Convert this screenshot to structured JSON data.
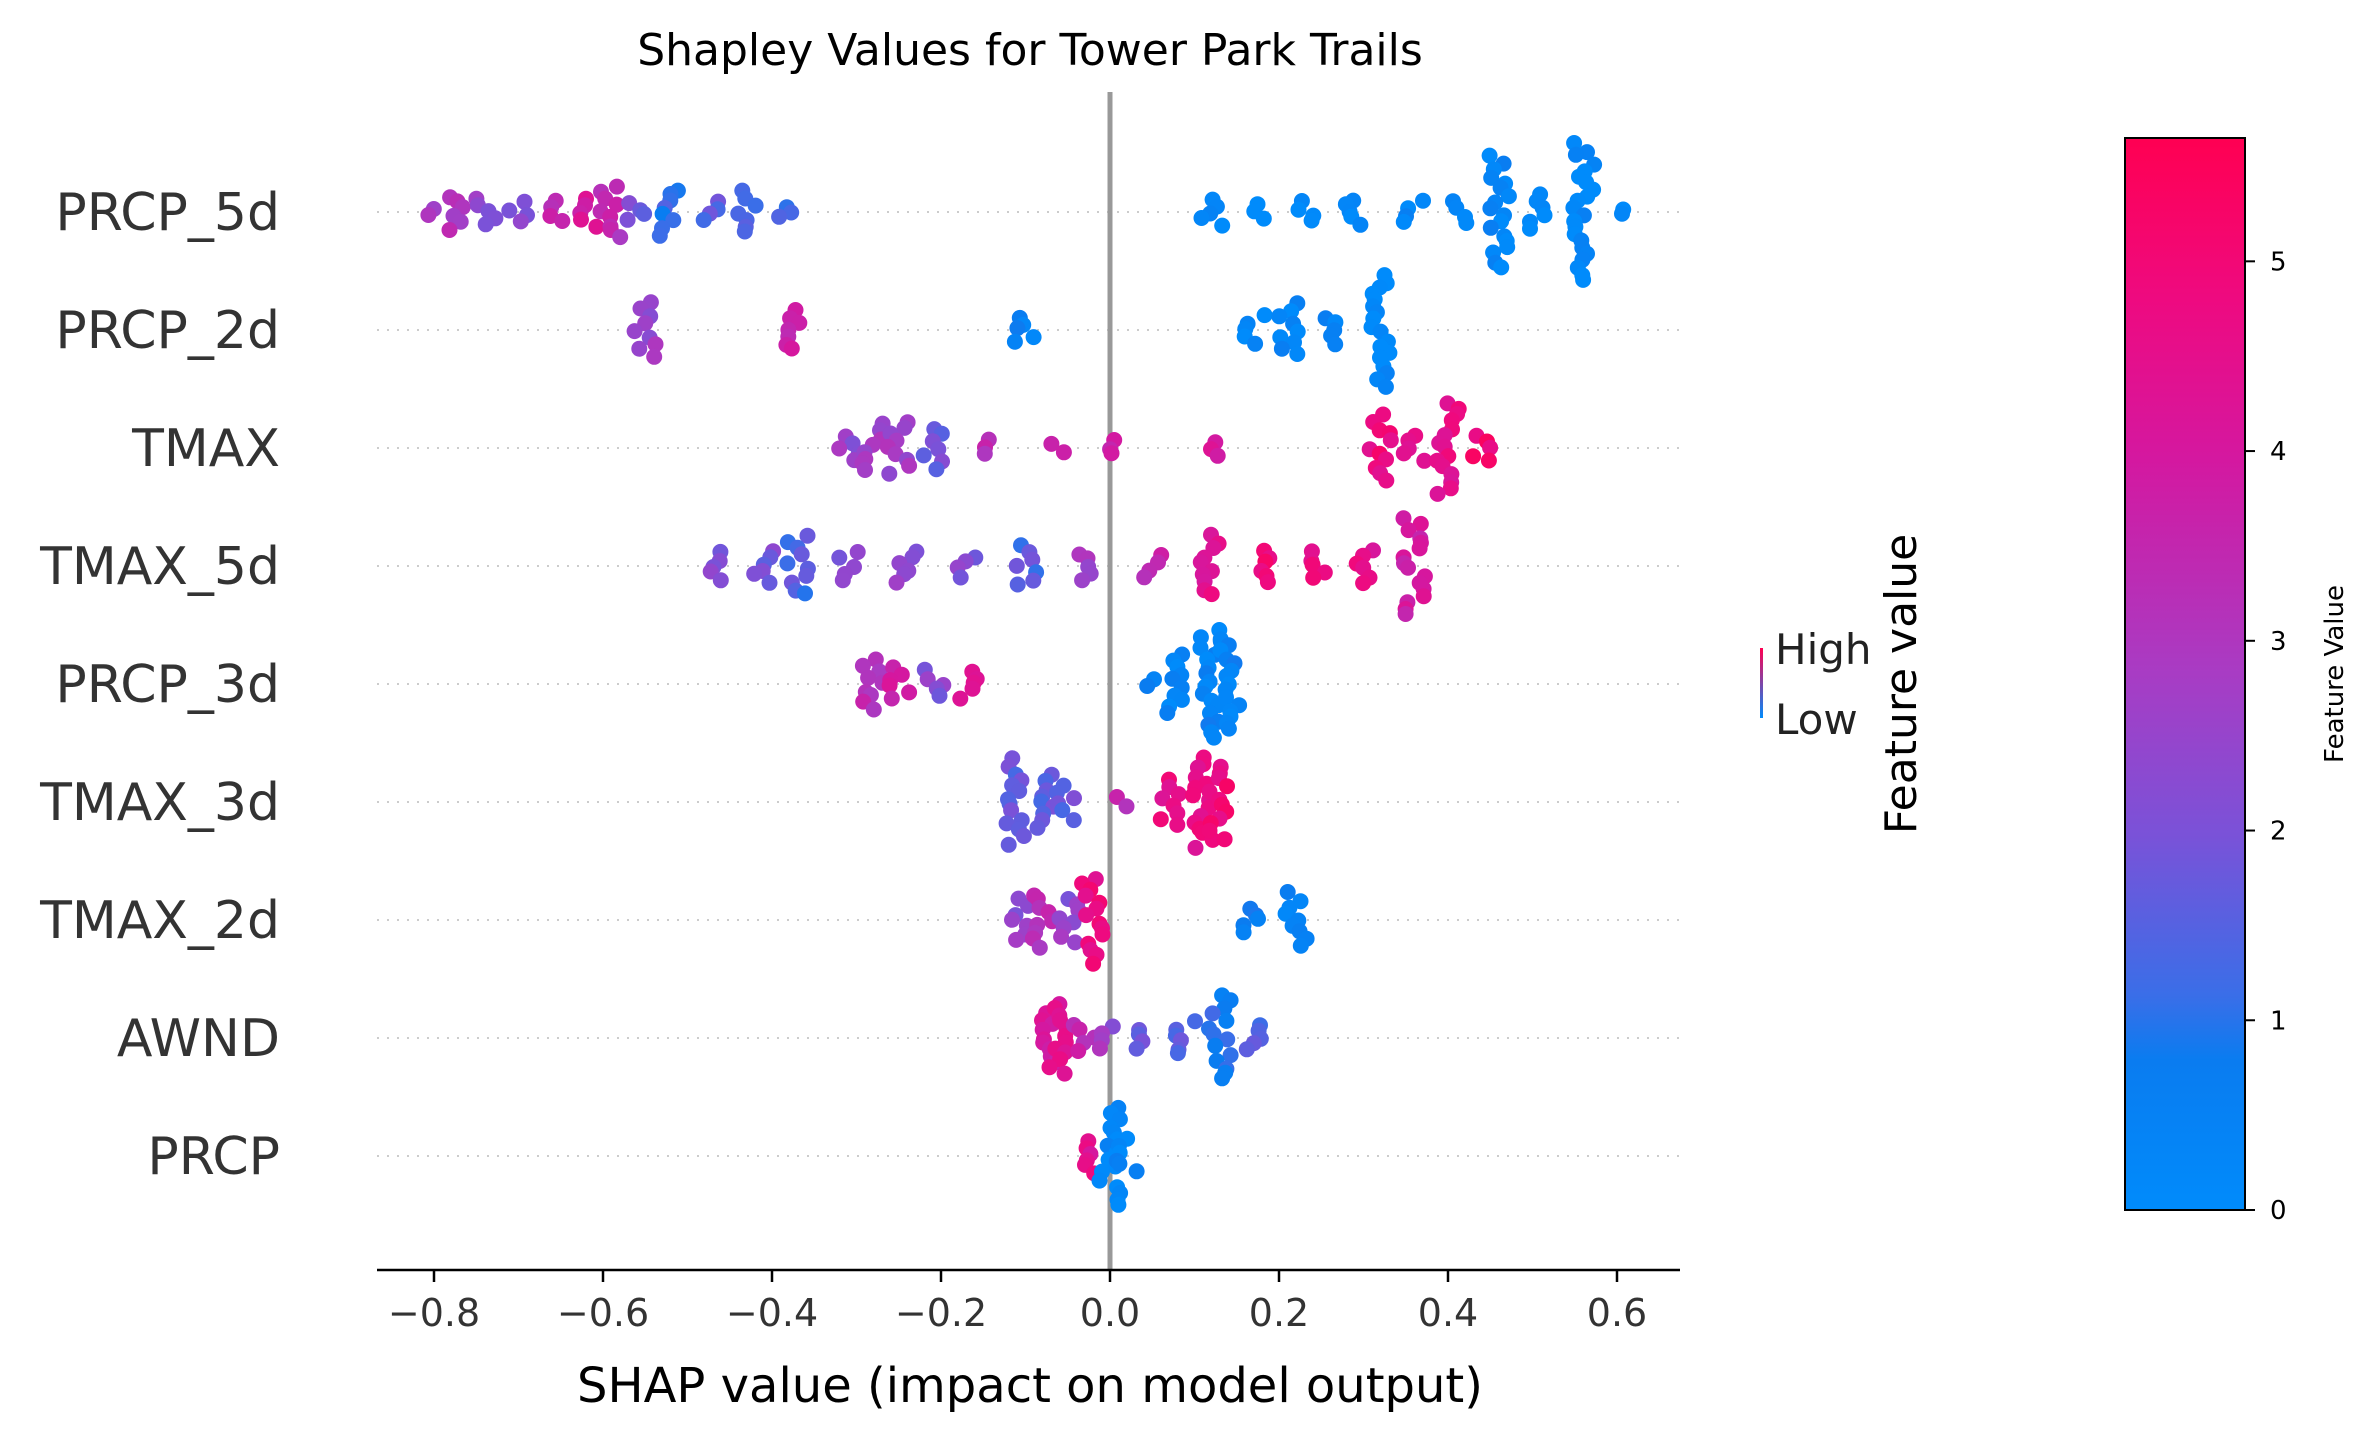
{
  "chart_data": {
    "type": "scatter",
    "title": "Shapley Values for Tower Park Trails",
    "xlabel": "SHAP value (impact on model output)",
    "xlim": [
      -0.87,
      0.67
    ],
    "xticks": [
      -0.8,
      -0.6,
      -0.4,
      -0.2,
      0.0,
      0.2,
      0.4,
      0.6
    ],
    "xtick_labels": [
      "−0.8",
      "−0.6",
      "−0.4",
      "−0.2",
      "0.0",
      "0.2",
      "0.4",
      "0.6"
    ],
    "features": [
      "PRCP_5d",
      "PRCP_2d",
      "TMAX",
      "TMAX_5d",
      "PRCP_3d",
      "TMAX_3d",
      "TMAX_2d",
      "AWND",
      "PRCP"
    ],
    "series": [
      {
        "feature": "PRCP_5d",
        "clusters": [
          {
            "x": -0.8,
            "n": 2,
            "v": 3.0
          },
          {
            "x": -0.77,
            "n": 6,
            "v": 3.0
          },
          {
            "x": -0.74,
            "n": 5,
            "v": 2.3
          },
          {
            "x": -0.7,
            "n": 4,
            "v": 2.2
          },
          {
            "x": -0.66,
            "n": 4,
            "v": 3.6
          },
          {
            "x": -0.62,
            "n": 5,
            "v": 4.0
          },
          {
            "x": -0.59,
            "n": 9,
            "v": 3.3
          },
          {
            "x": -0.56,
            "n": 4,
            "v": 2.0
          },
          {
            "x": -0.52,
            "n": 8,
            "v": 1.2
          },
          {
            "x": -0.47,
            "n": 4,
            "v": 1.5
          },
          {
            "x": -0.43,
            "n": 7,
            "v": 1.2
          },
          {
            "x": -0.39,
            "n": 3,
            "v": 1.0
          },
          {
            "x": 0.12,
            "n": 5,
            "v": 0.3
          },
          {
            "x": 0.17,
            "n": 3,
            "v": 0.2
          },
          {
            "x": 0.23,
            "n": 4,
            "v": 0.2
          },
          {
            "x": 0.29,
            "n": 5,
            "v": 0.3
          },
          {
            "x": 0.36,
            "n": 4,
            "v": 0.3
          },
          {
            "x": 0.41,
            "n": 4,
            "v": 0.2
          },
          {
            "x": 0.46,
            "n": 18,
            "v": 0.3
          },
          {
            "x": 0.51,
            "n": 6,
            "v": 0.2
          },
          {
            "x": 0.56,
            "n": 22,
            "v": 0.2
          },
          {
            "x": 0.6,
            "n": 2,
            "v": 0.3
          }
        ]
      },
      {
        "feature": "PRCP_2d",
        "clusters": [
          {
            "x": -0.55,
            "n": 9,
            "v": 2.6
          },
          {
            "x": -0.37,
            "n": 7,
            "v": 3.6
          },
          {
            "x": -0.1,
            "n": 5,
            "v": 0.6
          },
          {
            "x": 0.17,
            "n": 5,
            "v": 0.3
          },
          {
            "x": 0.21,
            "n": 9,
            "v": 0.3
          },
          {
            "x": 0.26,
            "n": 5,
            "v": 0.3
          },
          {
            "x": 0.32,
            "n": 18,
            "v": 0.2
          }
        ]
      },
      {
        "feature": "TMAX",
        "clusters": [
          {
            "x": -0.31,
            "n": 5,
            "v": 2.5
          },
          {
            "x": -0.28,
            "n": 8,
            "v": 2.8
          },
          {
            "x": -0.25,
            "n": 9,
            "v": 2.7
          },
          {
            "x": -0.21,
            "n": 7,
            "v": 1.8
          },
          {
            "x": -0.15,
            "n": 3,
            "v": 3.3
          },
          {
            "x": -0.06,
            "n": 2,
            "v": 3.5
          },
          {
            "x": 0.0,
            "n": 3,
            "v": 3.6
          },
          {
            "x": 0.13,
            "n": 3,
            "v": 3.9
          },
          {
            "x": 0.32,
            "n": 11,
            "v": 4.8
          },
          {
            "x": 0.36,
            "n": 5,
            "v": 4.6
          },
          {
            "x": 0.4,
            "n": 15,
            "v": 4.5
          },
          {
            "x": 0.44,
            "n": 5,
            "v": 5.0
          }
        ]
      },
      {
        "feature": "TMAX_5d",
        "clusters": [
          {
            "x": -0.46,
            "n": 5,
            "v": 2.1
          },
          {
            "x": -0.41,
            "n": 6,
            "v": 2.0
          },
          {
            "x": -0.37,
            "n": 10,
            "v": 1.4
          },
          {
            "x": -0.31,
            "n": 5,
            "v": 2.2
          },
          {
            "x": -0.24,
            "n": 6,
            "v": 2.4
          },
          {
            "x": -0.17,
            "n": 4,
            "v": 2.2
          },
          {
            "x": -0.1,
            "n": 7,
            "v": 1.5
          },
          {
            "x": -0.03,
            "n": 5,
            "v": 2.8
          },
          {
            "x": 0.05,
            "n": 4,
            "v": 3.4
          },
          {
            "x": 0.12,
            "n": 10,
            "v": 4.4
          },
          {
            "x": 0.18,
            "n": 6,
            "v": 4.8
          },
          {
            "x": 0.25,
            "n": 5,
            "v": 4.7
          },
          {
            "x": 0.3,
            "n": 6,
            "v": 4.5
          },
          {
            "x": 0.36,
            "n": 16,
            "v": 3.9
          }
        ]
      },
      {
        "feature": "PRCP_3d",
        "clusters": [
          {
            "x": -0.28,
            "n": 9,
            "v": 3.2
          },
          {
            "x": -0.25,
            "n": 6,
            "v": 3.8
          },
          {
            "x": -0.21,
            "n": 5,
            "v": 2.2
          },
          {
            "x": -0.17,
            "n": 5,
            "v": 4.7
          },
          {
            "x": 0.05,
            "n": 2,
            "v": 0.4
          },
          {
            "x": 0.08,
            "n": 10,
            "v": 0.4
          },
          {
            "x": 0.12,
            "n": 18,
            "v": 0.4
          },
          {
            "x": 0.14,
            "n": 15,
            "v": 0.4
          }
        ]
      },
      {
        "feature": "TMAX_3d",
        "clusters": [
          {
            "x": -0.11,
            "n": 14,
            "v": 1.6
          },
          {
            "x": -0.08,
            "n": 9,
            "v": 1.7
          },
          {
            "x": -0.05,
            "n": 6,
            "v": 1.7
          },
          {
            "x": 0.02,
            "n": 2,
            "v": 3.2
          },
          {
            "x": 0.07,
            "n": 8,
            "v": 4.6
          },
          {
            "x": 0.11,
            "n": 15,
            "v": 4.6
          },
          {
            "x": 0.13,
            "n": 12,
            "v": 4.9
          }
        ]
      },
      {
        "feature": "TMAX_2d",
        "clusters": [
          {
            "x": -0.11,
            "n": 7,
            "v": 2.4
          },
          {
            "x": -0.08,
            "n": 9,
            "v": 3.2
          },
          {
            "x": -0.05,
            "n": 8,
            "v": 2.4
          },
          {
            "x": -0.02,
            "n": 14,
            "v": 4.7
          },
          {
            "x": 0.17,
            "n": 5,
            "v": 0.5
          },
          {
            "x": 0.22,
            "n": 9,
            "v": 0.5
          }
        ]
      },
      {
        "feature": "AWND",
        "clusters": [
          {
            "x": -0.07,
            "n": 9,
            "v": 4.0
          },
          {
            "x": -0.06,
            "n": 12,
            "v": 4.3
          },
          {
            "x": -0.03,
            "n": 5,
            "v": 3.4
          },
          {
            "x": 0.0,
            "n": 4,
            "v": 2.6
          },
          {
            "x": 0.04,
            "n": 4,
            "v": 2.0
          },
          {
            "x": 0.09,
            "n": 6,
            "v": 1.4
          },
          {
            "x": 0.13,
            "n": 14,
            "v": 0.9
          },
          {
            "x": 0.17,
            "n": 5,
            "v": 1.5
          }
        ]
      },
      {
        "feature": "PRCP",
        "clusters": [
          {
            "x": -0.02,
            "n": 6,
            "v": 4.4
          },
          {
            "x": 0.0,
            "n": 16,
            "v": 0.2
          },
          {
            "x": 0.02,
            "n": 6,
            "v": 0.3
          }
        ]
      }
    ],
    "colorbar": {
      "label": "Feature Value",
      "range": [
        0,
        5.65
      ],
      "ticks": [
        0,
        1,
        2,
        3,
        4,
        5
      ],
      "tick_labels": [
        "0",
        "1",
        "2",
        "3",
        "4",
        "5"
      ],
      "low_color": "#008bfb",
      "high_color": "#ff0052"
    },
    "legend": {
      "title": "Feature value",
      "high": "High",
      "low": "Low"
    },
    "grid": false
  }
}
